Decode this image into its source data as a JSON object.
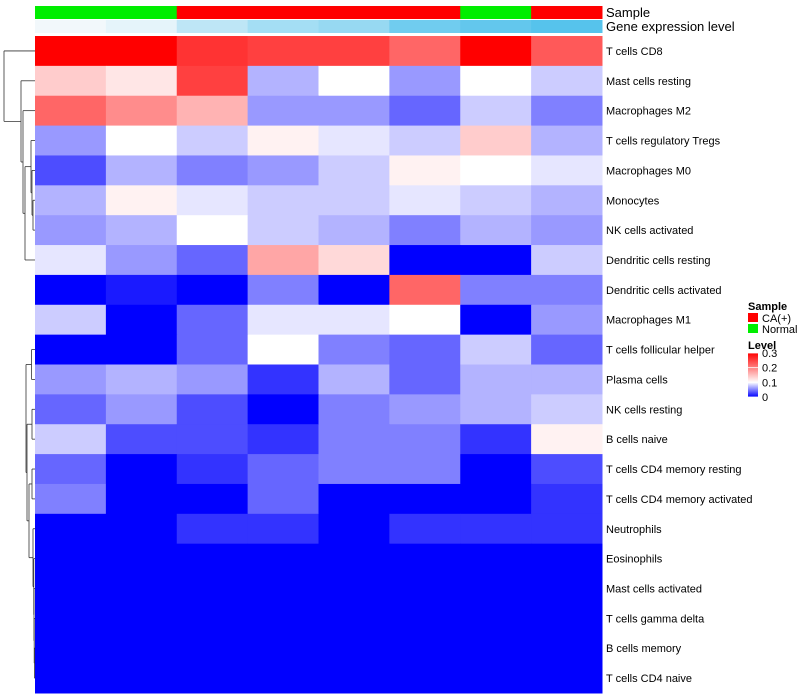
{
  "chart_data": {
    "type": "heatmap",
    "title": "",
    "columns": 8,
    "annotation_rows": [
      {
        "label": "Sample",
        "values": [
          "Normal",
          "Normal",
          "CA(+)",
          "CA(+)",
          "CA(+)",
          "CA(+)",
          "Normal",
          "CA(+)"
        ]
      },
      {
        "label": "Gene expression level",
        "values": [
          0.0,
          0.05,
          0.2,
          0.3,
          0.35,
          0.5,
          0.55,
          0.6
        ]
      }
    ],
    "rows": [
      "T cells CD8",
      "Mast cells resting",
      "Macrophages M2",
      "T cells regulatory  Tregs",
      "Macrophages M0",
      "Monocytes",
      "NK cells activated",
      "Dendritic cells resting",
      "Dendritic cells activated",
      "Macrophages M1",
      "T cells follicular helper",
      "Plasma cells",
      "NK cells resting",
      "B cells naive",
      "T cells CD4 memory resting",
      "T cells CD4 memory activated",
      "Neutrophils",
      "Eosinophils",
      "Mast cells activated",
      "T cells gamma delta",
      "B cells memory",
      "T cells CD4 naive"
    ],
    "values": [
      [
        0.3,
        0.3,
        0.26,
        0.25,
        0.25,
        0.22,
        0.3,
        0.23
      ],
      [
        0.14,
        0.12,
        0.25,
        0.07,
        0.1,
        0.06,
        0.1,
        0.08
      ],
      [
        0.22,
        0.19,
        0.16,
        0.06,
        0.06,
        0.04,
        0.08,
        0.05
      ],
      [
        0.06,
        0.1,
        0.08,
        0.11,
        0.09,
        0.08,
        0.14,
        0.07
      ],
      [
        0.03,
        0.07,
        0.05,
        0.06,
        0.08,
        0.11,
        0.1,
        0.09
      ],
      [
        0.07,
        0.11,
        0.09,
        0.08,
        0.08,
        0.09,
        0.08,
        0.07
      ],
      [
        0.06,
        0.07,
        0.1,
        0.08,
        0.07,
        0.05,
        0.07,
        0.06
      ],
      [
        0.09,
        0.06,
        0.04,
        0.17,
        0.13,
        0.0,
        0.0,
        0.08
      ],
      [
        0.0,
        0.01,
        0.0,
        0.05,
        0.0,
        0.22,
        0.05,
        0.05
      ],
      [
        0.08,
        0.0,
        0.04,
        0.09,
        0.09,
        0.1,
        0.0,
        0.06
      ],
      [
        0.0,
        0.0,
        0.04,
        0.1,
        0.05,
        0.04,
        0.08,
        0.04
      ],
      [
        0.06,
        0.07,
        0.06,
        0.02,
        0.07,
        0.04,
        0.07,
        0.07
      ],
      [
        0.04,
        0.06,
        0.03,
        0.0,
        0.05,
        0.06,
        0.07,
        0.08
      ],
      [
        0.08,
        0.03,
        0.03,
        0.02,
        0.05,
        0.05,
        0.02,
        0.11
      ],
      [
        0.04,
        0.0,
        0.02,
        0.04,
        0.05,
        0.05,
        0.0,
        0.03
      ],
      [
        0.05,
        0.0,
        0.0,
        0.04,
        0.0,
        0.0,
        0.0,
        0.02
      ],
      [
        0.0,
        0.0,
        0.02,
        0.02,
        0.0,
        0.02,
        0.02,
        0.02
      ],
      [
        0.0,
        0.0,
        0.0,
        0.0,
        0.0,
        0.0,
        0.0,
        0.0
      ],
      [
        0.0,
        0.0,
        0.0,
        0.0,
        0.0,
        0.0,
        0.0,
        0.0
      ],
      [
        0.0,
        0.0,
        0.0,
        0.0,
        0.0,
        0.0,
        0.0,
        0.0
      ],
      [
        0.0,
        0.0,
        0.0,
        0.0,
        0.0,
        0.0,
        0.0,
        0.0
      ],
      [
        0.0,
        0.0,
        0.0,
        0.0,
        0.0,
        0.0,
        0.0,
        0.0
      ]
    ],
    "value_range": [
      0,
      0.3
    ],
    "legend": {
      "sample_title": "Sample",
      "sample_entries": [
        {
          "label": "CA(+)",
          "color": "#ff0000"
        },
        {
          "label": "Normal",
          "color": "#00ee00"
        }
      ],
      "level_title": "Level",
      "level_ticks": [
        0.3,
        0.2,
        0.1,
        0
      ],
      "level_tick_labels": [
        "0.3",
        "0.2",
        "0.1",
        "0"
      ],
      "position": "right"
    },
    "colors": {
      "low": "#0000ff",
      "mid": "#ffffff",
      "high": "#ff0000",
      "expr_low": "#f2f8fb",
      "expr_high": "#56c3ec"
    }
  }
}
